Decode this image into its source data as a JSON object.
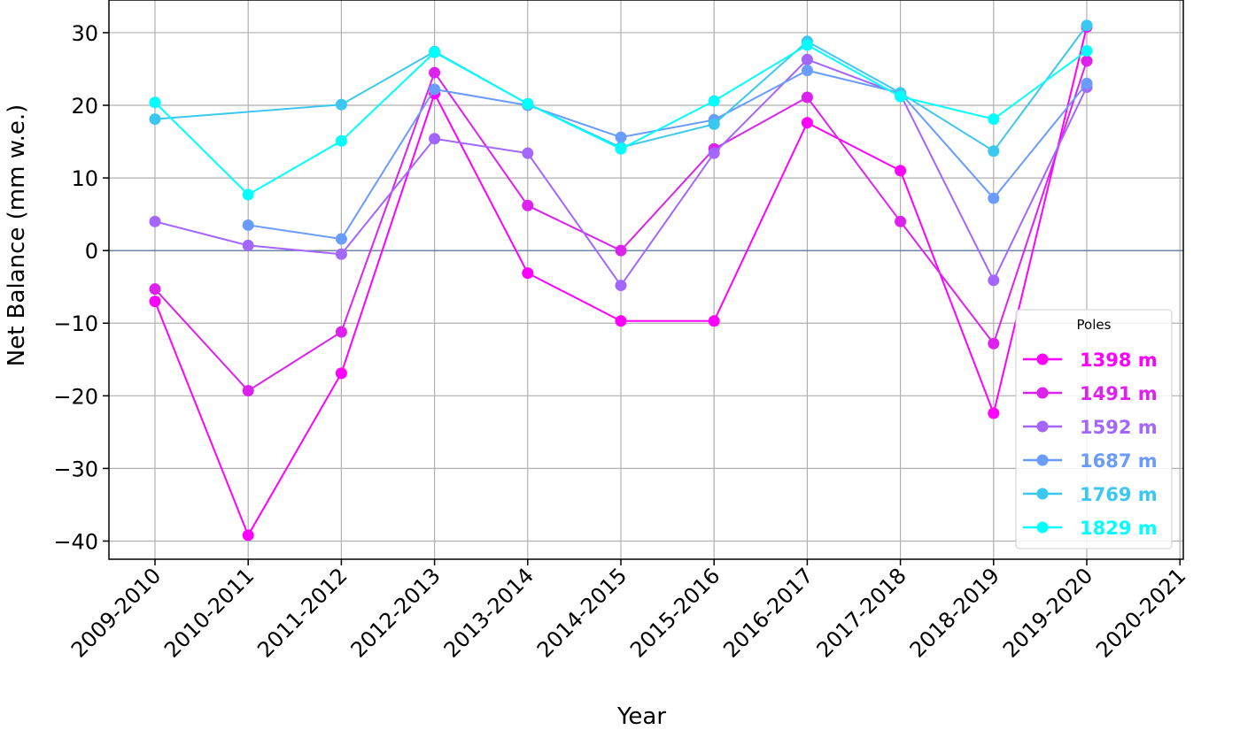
{
  "chart_data": {
    "type": "line",
    "title": "",
    "xlabel": "Year",
    "ylabel": "Net Balance (mm w.e.)",
    "categories": [
      "2009-2010",
      "2010-2011",
      "2011-2012",
      "2012-2013",
      "2013-2014",
      "2014-2015",
      "2015-2016",
      "2016-2017",
      "2017-2018",
      "2018-2019",
      "2019-2020",
      "2020-2021"
    ],
    "yticks": [
      30,
      20,
      10,
      0,
      -10,
      -20,
      -30,
      -40
    ],
    "ytick_labels": [
      "30",
      "20",
      "10",
      "0",
      "−10",
      "−20",
      "−30",
      "−40"
    ],
    "ylim": [
      -42.5,
      34.5
    ],
    "grid": true,
    "zero_line": true,
    "legend": {
      "title": "Poles",
      "placement": "lower-right"
    },
    "series": [
      {
        "name": "1398 m",
        "color": "#ff00ff",
        "values": [
          -7,
          -39.2,
          -16.9,
          21.6,
          -3.1,
          -9.7,
          -9.7,
          17.6,
          11,
          -22.4,
          30.8,
          null
        ]
      },
      {
        "name": "1491 m",
        "color": "#dd22ee",
        "values": [
          -5.3,
          -19.3,
          -11.2,
          24.5,
          6.2,
          0,
          14,
          21.1,
          4,
          -12.8,
          26.1,
          null
        ]
      },
      {
        "name": "1592 m",
        "color": "#a366ff",
        "values": [
          4,
          0.7,
          -0.5,
          15.4,
          13.4,
          -4.8,
          13.4,
          26.3,
          21.5,
          -4.1,
          22.5,
          null
        ]
      },
      {
        "name": "1687 m",
        "color": "#6a9cff",
        "values": [
          null,
          3.5,
          1.6,
          22.2,
          20,
          15.6,
          18,
          24.8,
          21.7,
          7.2,
          23,
          null
        ]
      },
      {
        "name": "1769 m",
        "color": "#3bc8f0",
        "values": [
          18.1,
          null,
          20.1,
          27.4,
          20.2,
          14.2,
          17.4,
          28.8,
          21.7,
          13.7,
          31,
          null
        ]
      },
      {
        "name": "1829 m",
        "color": "#00ffff",
        "values": [
          20.4,
          7.7,
          15.1,
          27.3,
          20.2,
          14,
          20.6,
          28.3,
          21.2,
          18.1,
          27.5,
          null
        ]
      }
    ]
  }
}
